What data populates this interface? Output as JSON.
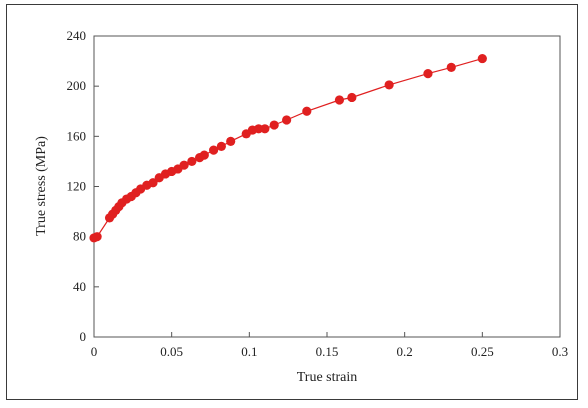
{
  "chart_data": {
    "type": "scatter",
    "title": "",
    "xlabel": "True strain",
    "ylabel": "True stress (MPa)",
    "xlim": [
      0,
      0.3
    ],
    "ylim": [
      0,
      240
    ],
    "xticks": [
      0,
      0.05,
      0.1,
      0.15,
      0.2,
      0.25,
      0.3
    ],
    "xtick_labels": [
      "0",
      "0.05",
      "0.1",
      "0.15",
      "0.2",
      "0.25",
      "0.3"
    ],
    "yticks": [
      0,
      40,
      80,
      120,
      160,
      200,
      240
    ],
    "ytick_labels": [
      "0",
      "40",
      "80",
      "120",
      "160",
      "200",
      "240"
    ],
    "grid": false,
    "legend": "none",
    "color": "#e02020",
    "line": true,
    "series": [
      {
        "x": [
          0.0,
          0.002,
          0.01,
          0.012,
          0.014,
          0.016,
          0.018,
          0.021,
          0.024,
          0.027,
          0.03,
          0.034,
          0.038,
          0.042,
          0.046,
          0.05,
          0.054,
          0.058,
          0.063,
          0.068,
          0.071,
          0.077,
          0.082,
          0.088,
          0.098,
          0.102,
          0.106,
          0.11,
          0.116,
          0.124,
          0.137,
          0.158,
          0.166,
          0.19,
          0.215,
          0.23,
          0.25
        ],
        "y": [
          79,
          80,
          95,
          98,
          101,
          104,
          107,
          110,
          112,
          115,
          118,
          121,
          123,
          127,
          130,
          132,
          134,
          137,
          140,
          143,
          145,
          149,
          152,
          156,
          162,
          165,
          166,
          166,
          169,
          173,
          180,
          189,
          191,
          201,
          210,
          215,
          222
        ]
      }
    ]
  }
}
